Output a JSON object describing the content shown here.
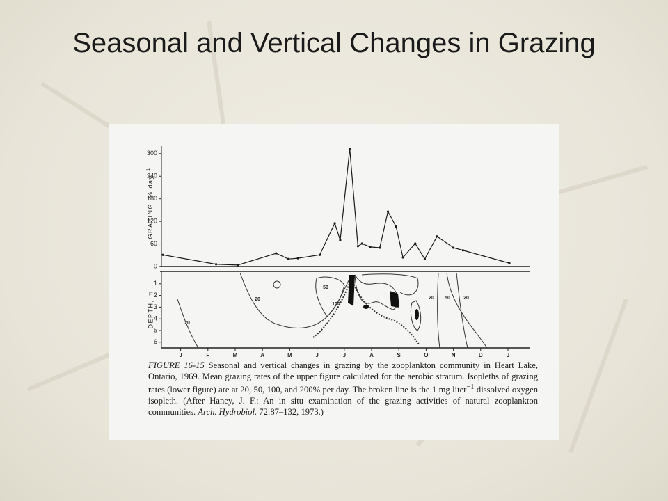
{
  "slide": {
    "title": "Seasonal and Vertical Changes in Grazing"
  },
  "chart_data": [
    {
      "type": "line",
      "ylabel": "GRAZING, % day",
      "ylabel_sup": "−1",
      "x": [
        -0.15,
        1.8,
        2.6,
        4.0,
        4.45,
        4.8,
        5.6,
        6.15,
        6.35,
        6.7,
        7.0,
        7.15,
        7.45,
        7.8,
        8.1,
        8.4,
        8.65,
        9.1,
        9.45,
        9.9,
        10.5,
        10.85,
        12.55
      ],
      "values": [
        31,
        6,
        4,
        35,
        20,
        22,
        31,
        115,
        70,
        313,
        54,
        61,
        52,
        50,
        146,
        106,
        24,
        61,
        20,
        80,
        50,
        43,
        9
      ],
      "color": "#1a1a1a",
      "xlim": [
        -0.5,
        13
      ],
      "ylim": [
        0,
        320
      ],
      "yticks": [
        0,
        60,
        120,
        180,
        240,
        300
      ]
    },
    {
      "type": "contour",
      "ylabel": "DEPTH, m",
      "xlim": [
        -0.5,
        13
      ],
      "xticks": [
        {
          "value": 0.5,
          "label": "J"
        },
        {
          "value": 1.5,
          "label": "F"
        },
        {
          "value": 2.5,
          "label": "M"
        },
        {
          "value": 3.5,
          "label": "A"
        },
        {
          "value": 4.5,
          "label": "M"
        },
        {
          "value": 5.5,
          "label": "J"
        },
        {
          "value": 6.5,
          "label": "J"
        },
        {
          "value": 7.5,
          "label": "A"
        },
        {
          "value": 8.5,
          "label": "S"
        },
        {
          "value": 9.5,
          "label": "O"
        },
        {
          "value": 10.5,
          "label": "N"
        },
        {
          "value": 11.5,
          "label": "D"
        },
        {
          "value": 12.5,
          "label": "J"
        }
      ],
      "ylim": [
        0,
        6.5
      ],
      "yticks": [
        1,
        2,
        3,
        4,
        5,
        6
      ],
      "annotations": [
        "20",
        "50",
        "100",
        "20",
        "50",
        "20",
        "20"
      ]
    }
  ],
  "caption": {
    "label": "FIGURE 16-15",
    "text": " Seasonal and vertical changes in grazing by the zooplankton community in Heart Lake, Ontario, 1969. Mean grazing rates of the upper figure calculated for the aerobic stratum. Isopleths of grazing rates (lower figure) are at 20, 50, 100, and 200% per day. The broken line is the 1 mg liter",
    "sup": "−1",
    "text2": " dissolved oxygen isopleth. (After Haney, J. F.: An in situ examination of the grazing activities of natural zooplankton communities. ",
    "journal": "Arch. Hydrobiol.",
    "text3": " 72:87–132, 1973.)"
  }
}
